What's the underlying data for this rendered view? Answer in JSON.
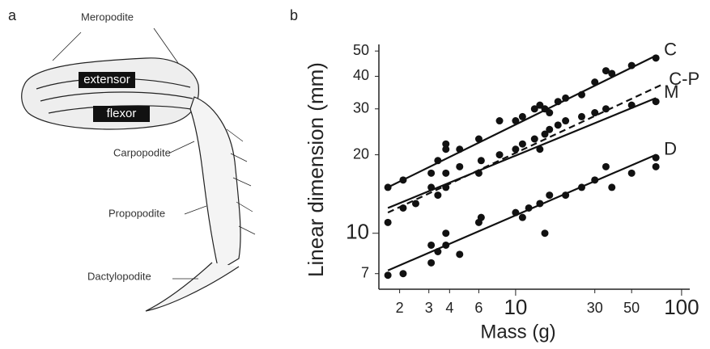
{
  "panel_a": {
    "letter": "a",
    "labels": [
      "Meropodite",
      "extensor",
      "flexor",
      "Carpopodite",
      "Propopodite",
      "Dactylopodite"
    ]
  },
  "chart_data": {
    "type": "scatter",
    "letter": "b",
    "xlabel": "Mass (g)",
    "ylabel": "Linear dimension (mm)",
    "log_x": true,
    "log_y": true,
    "xlim": [
      1.5,
      112
    ],
    "ylim": [
      6.1,
      53
    ],
    "xticks": [
      2,
      3,
      4,
      6,
      10,
      30,
      50,
      100
    ],
    "yticks": [
      7,
      10,
      20,
      30,
      40,
      50
    ],
    "color": "#111",
    "series": [
      {
        "name": "C",
        "fit_x": [
          1.7,
          70
        ],
        "fit": [
          15,
          48
        ],
        "dashed": false,
        "x": [
          1.7,
          2.1,
          3.1,
          3.4,
          3.8,
          3.8,
          4.6,
          6,
          8,
          10,
          11,
          13,
          14,
          15,
          16,
          18,
          20,
          25,
          30,
          35,
          38,
          50,
          70
        ],
        "values": [
          15,
          16,
          17,
          19,
          22,
          21,
          21,
          23,
          27,
          27,
          28,
          30,
          31,
          30,
          29,
          32,
          33,
          34,
          38,
          42,
          41,
          44,
          47
        ]
      },
      {
        "name": "C-P",
        "fit_x": [
          1.7,
          75
        ],
        "fit": [
          12,
          37
        ],
        "dashed": true
      },
      {
        "name": "M",
        "fit_x": [
          1.7,
          70
        ],
        "fit": [
          12.5,
          33
        ],
        "dashed": false,
        "x": [
          1.7,
          2.1,
          2.5,
          3.1,
          3.4,
          3.8,
          3.8,
          4.6,
          6,
          6.2,
          8,
          10,
          11,
          13,
          14,
          15,
          16,
          18,
          20,
          25,
          30,
          35,
          50,
          70
        ],
        "values": [
          11,
          12.5,
          13,
          15,
          14,
          15,
          17,
          18,
          17,
          19,
          20,
          21,
          22,
          23,
          21,
          24,
          25,
          26,
          27,
          28,
          29,
          30,
          31,
          32
        ]
      },
      {
        "name": "D",
        "fit_x": [
          1.7,
          70
        ],
        "fit": [
          7.2,
          20
        ],
        "dashed": false,
        "x": [
          1.7,
          2.1,
          3.1,
          3.1,
          3.4,
          3.8,
          3.8,
          4.6,
          6,
          6.2,
          10,
          11,
          12,
          14,
          15,
          16,
          20,
          25,
          30,
          35,
          38,
          50,
          70,
          70
        ],
        "values": [
          6.9,
          7,
          7.7,
          9,
          8.5,
          10,
          9,
          8.3,
          11,
          11.5,
          12,
          11.5,
          12.5,
          13,
          10,
          14,
          14,
          15,
          16,
          18,
          15,
          17,
          18,
          19.5
        ]
      }
    ]
  }
}
